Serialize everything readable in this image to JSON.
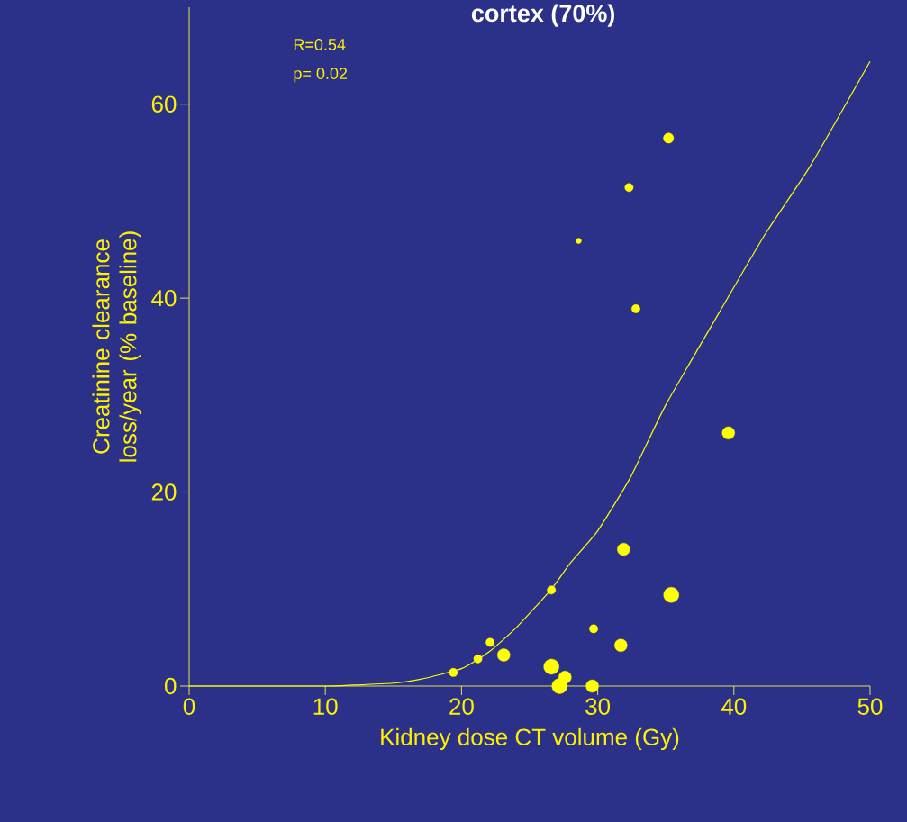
{
  "chart_data": {
    "type": "bubble",
    "title": "cortex (70%)",
    "xlabel": "Kidney dose CT volume (Gy)",
    "ylabel": "Creatinine clearance loss/year (% baseline)",
    "annotations": [
      "R=0.54",
      "p= 0.02"
    ],
    "xlim": [
      0,
      50
    ],
    "ylim": [
      0,
      70
    ],
    "xticks": [
      0,
      10,
      20,
      30,
      40,
      50
    ],
    "yticks": [
      0,
      20,
      40,
      60
    ],
    "series": [
      {
        "color": "#ffff00",
        "marker": "circle",
        "x": [
          19.4,
          21.2,
          22.1,
          23.1,
          26.6,
          26.6,
          27.2,
          27.6,
          28.6,
          29.6,
          29.7,
          31.7,
          31.9,
          32.3,
          32.8,
          35.2,
          35.4,
          39.6
        ],
        "values": [
          1.4,
          2.8,
          4.5,
          3.2,
          9.9,
          2.0,
          0,
          0.9,
          45.9,
          0,
          5.9,
          4.2,
          14.1,
          51.4,
          38.9,
          56.5,
          9.4,
          26.1
        ],
        "sizes": [
          0.3,
          0.3,
          0.3,
          0.67,
          0.3,
          1,
          1,
          0.67,
          0.13,
          0.67,
          0.3,
          0.67,
          0.67,
          0.3,
          0.3,
          0.45,
          1,
          0.67
        ]
      },
      {
        "type": "line",
        "color": "#ffff00",
        "x": [
          0,
          5,
          10,
          12,
          15,
          17,
          20,
          22,
          24,
          26.6,
          28,
          30,
          32.4,
          35,
          39,
          42.3,
          45.6,
          50
        ],
        "values": [
          0,
          0,
          0,
          0.1,
          0.3,
          0.7,
          1.8,
          3.5,
          6,
          10,
          12.7,
          16,
          21.5,
          29,
          38.7,
          46.6,
          53.6,
          64.4
        ]
      }
    ]
  }
}
